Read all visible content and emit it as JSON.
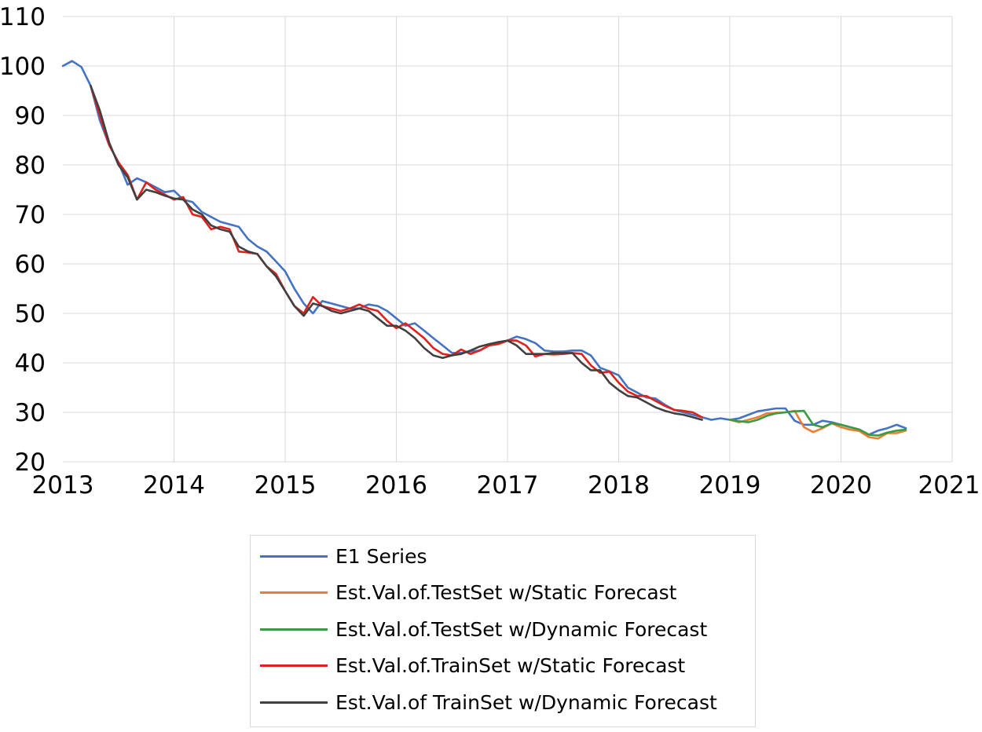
{
  "chart_data": {
    "type": "line",
    "title": "",
    "xlabel": "",
    "ylabel": "",
    "ylim": [
      20,
      110
    ],
    "xlim": [
      2013.0,
      2021.0
    ],
    "y_ticks": [
      "20",
      "30",
      "40",
      "50",
      "60",
      "70",
      "80",
      "90",
      "100",
      "110"
    ],
    "x_ticks": [
      "2013",
      "2014",
      "2015",
      "2016",
      "2017",
      "2018",
      "2019",
      "2020",
      "2021"
    ],
    "grid": true,
    "legend_position": "bottom",
    "series": [
      {
        "name": "E1 Series",
        "color": "#4472C4",
        "points": [
          [
            2013.0,
            100
          ],
          [
            2013.083,
            101
          ],
          [
            2013.167,
            99.8
          ],
          [
            2013.25,
            96
          ],
          [
            2013.333,
            89
          ],
          [
            2013.417,
            84
          ],
          [
            2013.5,
            80.5
          ],
          [
            2013.583,
            76
          ],
          [
            2013.667,
            77.3
          ],
          [
            2013.75,
            76.5
          ],
          [
            2013.833,
            75.5
          ],
          [
            2013.917,
            74.5
          ],
          [
            2014.0,
            74.8
          ],
          [
            2014.083,
            73
          ],
          [
            2014.167,
            72.5
          ],
          [
            2014.25,
            70.5
          ],
          [
            2014.333,
            69.5
          ],
          [
            2014.417,
            68.5
          ],
          [
            2014.5,
            68
          ],
          [
            2014.583,
            67.5
          ],
          [
            2014.667,
            65
          ],
          [
            2014.75,
            63.5
          ],
          [
            2014.833,
            62.5
          ],
          [
            2014.917,
            60.5
          ],
          [
            2015.0,
            58.5
          ],
          [
            2015.083,
            55
          ],
          [
            2015.167,
            52
          ],
          [
            2015.25,
            50
          ],
          [
            2015.333,
            52.5
          ],
          [
            2015.417,
            52
          ],
          [
            2015.5,
            51.5
          ],
          [
            2015.583,
            51
          ],
          [
            2015.667,
            51
          ],
          [
            2015.75,
            51.8
          ],
          [
            2015.833,
            51.5
          ],
          [
            2015.917,
            50.5
          ],
          [
            2016.0,
            49
          ],
          [
            2016.083,
            47.5
          ],
          [
            2016.167,
            48
          ],
          [
            2016.25,
            46.5
          ],
          [
            2016.333,
            45
          ],
          [
            2016.417,
            43.5
          ],
          [
            2016.5,
            42
          ],
          [
            2016.583,
            42
          ],
          [
            2016.667,
            42.3
          ],
          [
            2016.75,
            42.5
          ],
          [
            2016.833,
            43.5
          ],
          [
            2016.917,
            44
          ],
          [
            2017.0,
            44.5
          ],
          [
            2017.083,
            45.3
          ],
          [
            2017.167,
            44.8
          ],
          [
            2017.25,
            44
          ],
          [
            2017.333,
            42.5
          ],
          [
            2017.417,
            42.3
          ],
          [
            2017.5,
            42.3
          ],
          [
            2017.583,
            42.5
          ],
          [
            2017.667,
            42.5
          ],
          [
            2017.75,
            41.5
          ],
          [
            2017.833,
            39
          ],
          [
            2017.917,
            38.3
          ],
          [
            2018.0,
            37.5
          ],
          [
            2018.083,
            35
          ],
          [
            2018.167,
            34
          ],
          [
            2018.25,
            33
          ],
          [
            2018.333,
            32.8
          ],
          [
            2018.417,
            31.5
          ],
          [
            2018.5,
            30.5
          ],
          [
            2018.583,
            30
          ],
          [
            2018.667,
            29.5
          ],
          [
            2018.75,
            29
          ],
          [
            2018.833,
            28.5
          ],
          [
            2018.917,
            28.8
          ],
          [
            2019.0,
            28.5
          ],
          [
            2019.083,
            28.8
          ],
          [
            2019.167,
            29.5
          ],
          [
            2019.25,
            30.2
          ],
          [
            2019.333,
            30.5
          ],
          [
            2019.417,
            30.8
          ],
          [
            2019.5,
            30.8
          ],
          [
            2019.583,
            28.3
          ],
          [
            2019.667,
            27.5
          ],
          [
            2019.75,
            27.5
          ],
          [
            2019.833,
            28.3
          ],
          [
            2019.917,
            28
          ],
          [
            2020.0,
            27.5
          ],
          [
            2020.083,
            27
          ],
          [
            2020.167,
            26.5
          ],
          [
            2020.25,
            25.5
          ],
          [
            2020.333,
            26.3
          ],
          [
            2020.417,
            26.8
          ],
          [
            2020.5,
            27.5
          ],
          [
            2020.583,
            26.8
          ]
        ]
      },
      {
        "name": "Est.Val.of.TestSet w/Static Forecast",
        "color": "#ED7D31",
        "points": [
          [
            2019.0,
            28.5
          ],
          [
            2019.083,
            28
          ],
          [
            2019.167,
            28.5
          ],
          [
            2019.25,
            29
          ],
          [
            2019.333,
            29.8
          ],
          [
            2019.417,
            29.9
          ],
          [
            2019.5,
            30
          ],
          [
            2019.583,
            30.3
          ],
          [
            2019.667,
            27
          ],
          [
            2019.75,
            26
          ],
          [
            2019.833,
            26.8
          ],
          [
            2019.917,
            27.8
          ],
          [
            2020.0,
            27
          ],
          [
            2020.083,
            26.5
          ],
          [
            2020.167,
            26.2
          ],
          [
            2020.25,
            25
          ],
          [
            2020.333,
            24.7
          ],
          [
            2020.417,
            25.8
          ],
          [
            2020.5,
            25.8
          ],
          [
            2020.583,
            26.3
          ]
        ]
      },
      {
        "name": "Est.Val.of.TestSet w/Dynamic Forecast",
        "color": "#3A9B46",
        "points": [
          [
            2019.0,
            28.5
          ],
          [
            2019.083,
            28.2
          ],
          [
            2019.167,
            28
          ],
          [
            2019.25,
            28.5
          ],
          [
            2019.333,
            29.3
          ],
          [
            2019.417,
            29.8
          ],
          [
            2019.5,
            30
          ],
          [
            2019.583,
            30.2
          ],
          [
            2019.667,
            30.3
          ],
          [
            2019.75,
            27.5
          ],
          [
            2019.833,
            27
          ],
          [
            2019.917,
            27.8
          ],
          [
            2020.0,
            27.5
          ],
          [
            2020.083,
            27
          ],
          [
            2020.167,
            26.5
          ],
          [
            2020.25,
            25.5
          ],
          [
            2020.333,
            25.3
          ],
          [
            2020.417,
            25.9
          ],
          [
            2020.5,
            26.3
          ],
          [
            2020.583,
            26.5
          ]
        ]
      },
      {
        "name": "Est.Val.of.TrainSet w/Static Forecast",
        "color": "#E0201A",
        "points": [
          [
            2013.25,
            96
          ],
          [
            2013.333,
            90
          ],
          [
            2013.417,
            84
          ],
          [
            2013.5,
            80.5
          ],
          [
            2013.583,
            78
          ],
          [
            2013.667,
            73
          ],
          [
            2013.75,
            76.5
          ],
          [
            2013.833,
            75
          ],
          [
            2013.917,
            74
          ],
          [
            2014.0,
            73
          ],
          [
            2014.083,
            73.5
          ],
          [
            2014.167,
            70
          ],
          [
            2014.25,
            69.5
          ],
          [
            2014.333,
            67
          ],
          [
            2014.417,
            67.5
          ],
          [
            2014.5,
            67
          ],
          [
            2014.583,
            62.5
          ],
          [
            2014.667,
            62.3
          ],
          [
            2014.75,
            62
          ],
          [
            2014.833,
            59.5
          ],
          [
            2014.917,
            58
          ],
          [
            2015.0,
            54.5
          ],
          [
            2015.083,
            51.5
          ],
          [
            2015.167,
            50
          ],
          [
            2015.25,
            53.3
          ],
          [
            2015.333,
            51.5
          ],
          [
            2015.417,
            51
          ],
          [
            2015.5,
            50.5
          ],
          [
            2015.583,
            51
          ],
          [
            2015.667,
            51.8
          ],
          [
            2015.75,
            51
          ],
          [
            2015.833,
            50.5
          ],
          [
            2015.917,
            48.5
          ],
          [
            2016.0,
            47
          ],
          [
            2016.083,
            48
          ],
          [
            2016.167,
            46.5
          ],
          [
            2016.25,
            45
          ],
          [
            2016.333,
            43
          ],
          [
            2016.417,
            41.8
          ],
          [
            2016.5,
            41.5
          ],
          [
            2016.583,
            42.7
          ],
          [
            2016.667,
            41.8
          ],
          [
            2016.75,
            42.5
          ],
          [
            2016.833,
            43.5
          ],
          [
            2016.917,
            43.8
          ],
          [
            2017.0,
            44.5
          ],
          [
            2017.083,
            44.5
          ],
          [
            2017.167,
            43.5
          ],
          [
            2017.25,
            41.3
          ],
          [
            2017.333,
            41.8
          ],
          [
            2017.417,
            41.7
          ],
          [
            2017.5,
            41.8
          ],
          [
            2017.583,
            42
          ],
          [
            2017.667,
            41.8
          ],
          [
            2017.75,
            39.5
          ],
          [
            2017.833,
            38
          ],
          [
            2017.917,
            38.2
          ],
          [
            2018.0,
            36
          ],
          [
            2018.083,
            34.2
          ],
          [
            2018.167,
            33.3
          ],
          [
            2018.25,
            33.3
          ],
          [
            2018.333,
            32.3
          ],
          [
            2018.417,
            31.3
          ],
          [
            2018.5,
            30.5
          ],
          [
            2018.583,
            30.3
          ],
          [
            2018.667,
            30
          ],
          [
            2018.75,
            29
          ]
        ]
      },
      {
        "name": "Est.Val.of TrainSet w/Dynamic Forecast",
        "color": "#404040",
        "points": [
          [
            2013.25,
            96
          ],
          [
            2013.333,
            91
          ],
          [
            2013.417,
            84.5
          ],
          [
            2013.5,
            80
          ],
          [
            2013.583,
            77.5
          ],
          [
            2013.667,
            73
          ],
          [
            2013.75,
            75
          ],
          [
            2013.833,
            74.5
          ],
          [
            2013.917,
            73.8
          ],
          [
            2014.0,
            73.2
          ],
          [
            2014.083,
            73
          ],
          [
            2014.167,
            71
          ],
          [
            2014.25,
            70
          ],
          [
            2014.333,
            67.8
          ],
          [
            2014.417,
            67
          ],
          [
            2014.5,
            66.5
          ],
          [
            2014.583,
            63.5
          ],
          [
            2014.667,
            62.5
          ],
          [
            2014.75,
            62
          ],
          [
            2014.833,
            59.5
          ],
          [
            2014.917,
            57.5
          ],
          [
            2015.0,
            54.5
          ],
          [
            2015.083,
            51.5
          ],
          [
            2015.167,
            49.5
          ],
          [
            2015.25,
            52
          ],
          [
            2015.333,
            51.5
          ],
          [
            2015.417,
            50.5
          ],
          [
            2015.5,
            50
          ],
          [
            2015.583,
            50.5
          ],
          [
            2015.667,
            51
          ],
          [
            2015.75,
            50.5
          ],
          [
            2015.833,
            49
          ],
          [
            2015.917,
            47.5
          ],
          [
            2016.0,
            47.5
          ],
          [
            2016.083,
            46.5
          ],
          [
            2016.167,
            45
          ],
          [
            2016.25,
            43
          ],
          [
            2016.333,
            41.5
          ],
          [
            2016.417,
            41
          ],
          [
            2016.5,
            41.5
          ],
          [
            2016.583,
            41.8
          ],
          [
            2016.667,
            42.5
          ],
          [
            2016.75,
            43.3
          ],
          [
            2016.833,
            43.8
          ],
          [
            2016.917,
            44.2
          ],
          [
            2017.0,
            44.5
          ],
          [
            2017.083,
            43.5
          ],
          [
            2017.167,
            41.8
          ],
          [
            2017.25,
            41.8
          ],
          [
            2017.333,
            41.8
          ],
          [
            2017.417,
            42
          ],
          [
            2017.5,
            42
          ],
          [
            2017.583,
            42
          ],
          [
            2017.667,
            40
          ],
          [
            2017.75,
            38.5
          ],
          [
            2017.833,
            38.5
          ],
          [
            2017.917,
            36
          ],
          [
            2018.0,
            34.5
          ],
          [
            2018.083,
            33.3
          ],
          [
            2018.167,
            33
          ],
          [
            2018.25,
            32
          ],
          [
            2018.333,
            31
          ],
          [
            2018.417,
            30.3
          ],
          [
            2018.5,
            29.8
          ],
          [
            2018.583,
            29.5
          ],
          [
            2018.667,
            29
          ],
          [
            2018.75,
            28.5
          ]
        ]
      }
    ]
  }
}
